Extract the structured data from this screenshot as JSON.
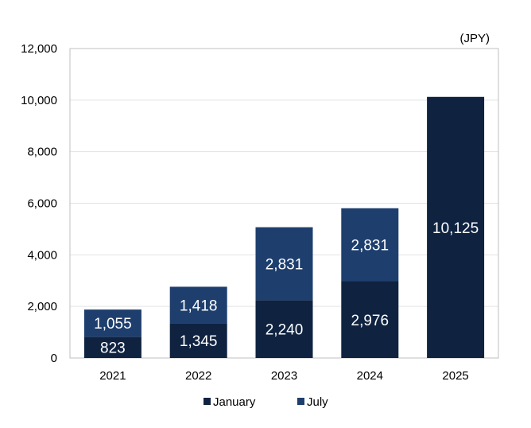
{
  "chart_data": {
    "type": "bar",
    "stacked": true,
    "title": "",
    "unit_label": "(JPY)",
    "xlabel": "",
    "ylabel": "",
    "categories": [
      "2021",
      "2022",
      "2023",
      "2024",
      "2025"
    ],
    "series": [
      {
        "name": "January",
        "color": "#0f2341",
        "values": [
          823,
          1345,
          2240,
          2976,
          10125
        ],
        "labels": [
          "823",
          "1,345",
          "2,240",
          "2,976",
          "10,125"
        ]
      },
      {
        "name": "July",
        "color": "#1e3f6e",
        "values": [
          1055,
          1418,
          2831,
          2831,
          0
        ],
        "labels": [
          "1,055",
          "1,418",
          "2,831",
          "2,831",
          ""
        ]
      }
    ],
    "ylim": [
      0,
      12000
    ],
    "yticks": [
      0,
      2000,
      4000,
      6000,
      8000,
      10000,
      12000
    ],
    "ytick_labels": [
      "0",
      "2,000",
      "4,000",
      "6,000",
      "8,000",
      "10,000",
      "12,000"
    ],
    "grid": true,
    "legend_position": "bottom"
  }
}
